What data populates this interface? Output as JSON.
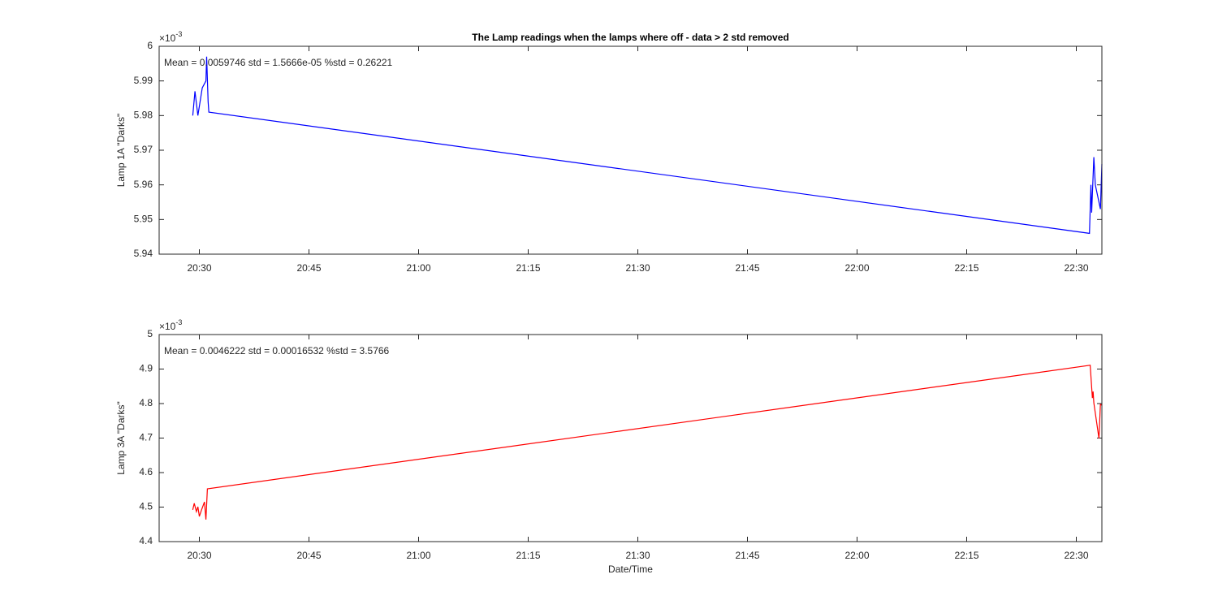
{
  "chart_data": [
    {
      "type": "line",
      "title": "The Lamp readings when the lamps where off - data > 2 std removed",
      "annotation": "Mean = 0.0059746  std = 1.5666e-05  %std = 0.26221",
      "ylabel": "Lamp 1A \"Darks\"",
      "y_multiplier": "×10",
      "y_multiplier_power": "-3",
      "color": "#0000ff",
      "x": [
        1229.1,
        1229.4,
        1229.8,
        1230.4,
        1230.9,
        1231.0,
        1231.2,
        1231.3,
        1351.8,
        1352.0,
        1352.1,
        1352.4,
        1352.6,
        1353.3,
        1353.5
      ],
      "values": [
        5.98,
        5.987,
        5.98,
        5.988,
        5.99,
        5.997,
        5.984,
        5.981,
        5.946,
        5.96,
        5.952,
        5.968,
        5.96,
        5.953,
        5.966
      ],
      "xlim": [
        1224.5,
        1353.5
      ],
      "xticks": [
        {
          "value": 1230,
          "label": "20:30"
        },
        {
          "value": 1245,
          "label": "20:45"
        },
        {
          "value": 1260,
          "label": "21:00"
        },
        {
          "value": 1275,
          "label": "21:15"
        },
        {
          "value": 1290,
          "label": "21:30"
        },
        {
          "value": 1305,
          "label": "21:45"
        },
        {
          "value": 1320,
          "label": "22:00"
        },
        {
          "value": 1335,
          "label": "22:15"
        },
        {
          "value": 1350,
          "label": "22:30"
        }
      ],
      "ylim": [
        5.94,
        6
      ],
      "yticks": [
        5.94,
        5.95,
        5.96,
        5.97,
        5.98,
        5.99,
        6
      ]
    },
    {
      "type": "line",
      "annotation": "Mean = 0.0046222  std = 0.00016532  %std = 3.5766",
      "ylabel": "Lamp 3A \"Darks\"",
      "xlabel": "Date/Time",
      "y_multiplier": "×10",
      "y_multiplier_power": "-3",
      "color": "#ff0000",
      "x": [
        1229.1,
        1229.3,
        1229.6,
        1229.8,
        1230.0,
        1230.3,
        1230.7,
        1230.9,
        1231.1,
        1351.9,
        1352.2,
        1352.3,
        1352.4,
        1353.1,
        1353.3,
        1353.5
      ],
      "values": [
        4.492,
        4.511,
        4.487,
        4.501,
        4.473,
        4.492,
        4.515,
        4.464,
        4.553,
        4.911,
        4.816,
        4.835,
        4.802,
        4.699,
        4.798,
        4.795
      ],
      "xlim": [
        1224.5,
        1353.5
      ],
      "xticks": [
        {
          "value": 1230,
          "label": "20:30"
        },
        {
          "value": 1245,
          "label": "20:45"
        },
        {
          "value": 1260,
          "label": "21:00"
        },
        {
          "value": 1275,
          "label": "21:15"
        },
        {
          "value": 1290,
          "label": "21:30"
        },
        {
          "value": 1305,
          "label": "21:45"
        },
        {
          "value": 1320,
          "label": "22:00"
        },
        {
          "value": 1335,
          "label": "22:15"
        },
        {
          "value": 1350,
          "label": "22:30"
        }
      ],
      "ylim": [
        4.4,
        5
      ],
      "yticks": [
        4.4,
        4.5,
        4.6,
        4.7,
        4.8,
        4.9,
        5
      ]
    }
  ]
}
